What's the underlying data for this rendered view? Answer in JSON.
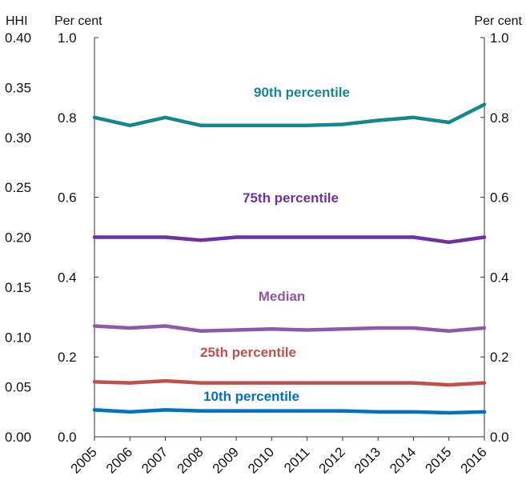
{
  "chart_data": {
    "type": "line",
    "title": "",
    "x": [
      "2005",
      "2006",
      "2007",
      "2008",
      "2009",
      "2010",
      "2011",
      "2012",
      "2013",
      "2014",
      "2015",
      "2016"
    ],
    "left_axis": {
      "unit_label": "HHI",
      "ylim": [
        0,
        0.4
      ],
      "ticks": [
        "0.00",
        "0.05",
        "0.10",
        "0.15",
        "0.20",
        "0.25",
        "0.30",
        "0.35",
        "0.40"
      ]
    },
    "center_axis": {
      "unit_label": "Per cent",
      "ylim": [
        0,
        1.0
      ],
      "ticks": [
        "0.0",
        "0.2",
        "0.4",
        "0.6",
        "0.8",
        "1.0"
      ]
    },
    "right_axis": {
      "unit_label": "Per cent",
      "ylim": [
        0,
        1.0
      ],
      "ticks": [
        "0.0",
        "0.2",
        "0.4",
        "0.6",
        "0.8",
        "1.0"
      ]
    },
    "grid": false,
    "series": [
      {
        "name": "90th percentile",
        "color": "#17878f",
        "values": [
          0.32,
          0.312,
          0.32,
          0.312,
          0.312,
          0.312,
          0.312,
          0.313,
          0.317,
          0.32,
          0.315,
          0.333
        ]
      },
      {
        "name": "75th percentile",
        "color": "#7030a0",
        "values": [
          0.2,
          0.2,
          0.2,
          0.197,
          0.2,
          0.2,
          0.2,
          0.2,
          0.2,
          0.2,
          0.195,
          0.2
        ]
      },
      {
        "name": "Median",
        "color": "#8e57a8",
        "values": [
          0.111,
          0.109,
          0.111,
          0.106,
          0.107,
          0.108,
          0.107,
          0.108,
          0.109,
          0.109,
          0.106,
          0.109
        ]
      },
      {
        "name": "25th percentile",
        "color": "#c0504d",
        "values": [
          0.055,
          0.054,
          0.056,
          0.054,
          0.054,
          0.054,
          0.054,
          0.054,
          0.054,
          0.054,
          0.052,
          0.054
        ]
      },
      {
        "name": "10th percentile",
        "color": "#0070c0",
        "values": [
          0.027,
          0.025,
          0.027,
          0.026,
          0.026,
          0.026,
          0.026,
          0.026,
          0.025,
          0.025,
          0.024,
          0.025
        ]
      }
    ]
  }
}
